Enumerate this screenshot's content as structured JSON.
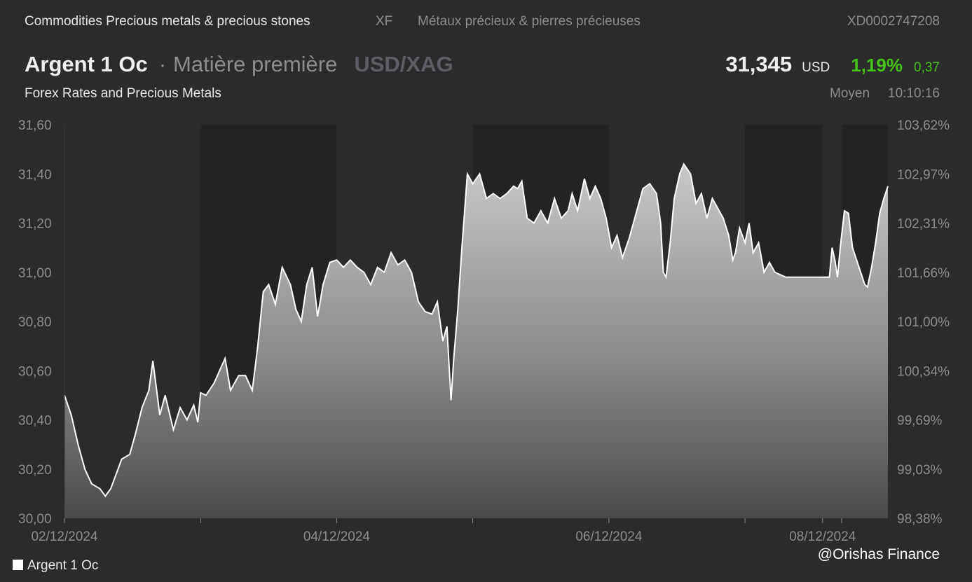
{
  "header": {
    "category": "Commodities Precious metals & precious stones",
    "exchange_code": "XF",
    "category_fr": "Métaux précieux & pierres précieuses",
    "isin": "XD0002747208",
    "instrument_name": "Argent 1 Oc",
    "separator": "·",
    "instrument_type": "Matière première",
    "pair": "USD/XAG",
    "source": "Forex Rates and Precious Metals",
    "price": "31,345",
    "currency": "USD",
    "change_pct": "1,19%",
    "change_abs": "0,37",
    "price_mode": "Moyen",
    "time": "10:10:16"
  },
  "colors": {
    "background": "#2b2b2b",
    "shade": "#232323",
    "line": "#ffffff",
    "positive": "#46c21a",
    "muted": "#8d8d8d"
  },
  "legend": {
    "label": "Argent 1 Oc"
  },
  "watermark": "@Orishas Finance",
  "chart_data": {
    "type": "area",
    "series": [
      {
        "name": "Argent 1 Oc"
      }
    ],
    "x_unit": "days from 02/12/2024",
    "xlim": [
      0,
      6.05
    ],
    "ylim": [
      30.0,
      31.6
    ],
    "y_ticks": [
      "31,60",
      "31,40",
      "31,20",
      "31,00",
      "30,80",
      "30,60",
      "30,40",
      "30,20",
      "30,00"
    ],
    "y_tick_values": [
      31.6,
      31.4,
      31.2,
      31.0,
      30.8,
      30.6,
      30.4,
      30.2,
      30.0
    ],
    "y2_ticks": [
      "103,62%",
      "102,97%",
      "102,31%",
      "101,66%",
      "101,00%",
      "100,34%",
      "99,69%",
      "99,03%",
      "98,38%"
    ],
    "x_ticks": [
      {
        "x": 0,
        "label": "02/12/2024"
      },
      {
        "x": 1,
        "label": ""
      },
      {
        "x": 2,
        "label": "04/12/2024"
      },
      {
        "x": 3,
        "label": ""
      },
      {
        "x": 4,
        "label": "06/12/2024"
      },
      {
        "x": 5,
        "label": ""
      },
      {
        "x": 5.57,
        "label": "08/12/2024"
      },
      {
        "x": 5.71,
        "label": ""
      }
    ],
    "shaded_bands": [
      [
        1.0,
        2.0
      ],
      [
        3.0,
        4.0
      ],
      [
        5.0,
        5.57
      ],
      [
        5.71,
        6.05
      ]
    ],
    "points": [
      [
        0.0,
        30.5
      ],
      [
        0.05,
        30.42
      ],
      [
        0.1,
        30.3
      ],
      [
        0.15,
        30.2
      ],
      [
        0.2,
        30.14
      ],
      [
        0.26,
        30.12
      ],
      [
        0.3,
        30.09
      ],
      [
        0.34,
        30.12
      ],
      [
        0.38,
        30.18
      ],
      [
        0.42,
        30.24
      ],
      [
        0.48,
        30.26
      ],
      [
        0.52,
        30.34
      ],
      [
        0.57,
        30.45
      ],
      [
        0.62,
        30.52
      ],
      [
        0.65,
        30.64
      ],
      [
        0.7,
        30.42
      ],
      [
        0.74,
        30.5
      ],
      [
        0.8,
        30.36
      ],
      [
        0.85,
        30.45
      ],
      [
        0.9,
        30.4
      ],
      [
        0.95,
        30.46
      ],
      [
        0.98,
        30.39
      ],
      [
        1.0,
        30.51
      ],
      [
        1.04,
        30.5
      ],
      [
        1.1,
        30.55
      ],
      [
        1.14,
        30.6
      ],
      [
        1.18,
        30.65
      ],
      [
        1.22,
        30.52
      ],
      [
        1.28,
        30.58
      ],
      [
        1.33,
        30.58
      ],
      [
        1.38,
        30.52
      ],
      [
        1.42,
        30.7
      ],
      [
        1.46,
        30.92
      ],
      [
        1.5,
        30.95
      ],
      [
        1.55,
        30.87
      ],
      [
        1.6,
        31.02
      ],
      [
        1.66,
        30.95
      ],
      [
        1.7,
        30.85
      ],
      [
        1.74,
        30.8
      ],
      [
        1.78,
        30.95
      ],
      [
        1.82,
        31.02
      ],
      [
        1.86,
        30.82
      ],
      [
        1.9,
        30.95
      ],
      [
        1.95,
        31.04
      ],
      [
        2.0,
        31.05
      ],
      [
        2.05,
        31.02
      ],
      [
        2.1,
        31.05
      ],
      [
        2.15,
        31.02
      ],
      [
        2.2,
        31.0
      ],
      [
        2.25,
        30.95
      ],
      [
        2.3,
        31.02
      ],
      [
        2.35,
        31.0
      ],
      [
        2.4,
        31.08
      ],
      [
        2.45,
        31.03
      ],
      [
        2.5,
        31.05
      ],
      [
        2.55,
        31.0
      ],
      [
        2.6,
        30.88
      ],
      [
        2.65,
        30.84
      ],
      [
        2.7,
        30.83
      ],
      [
        2.74,
        30.88
      ],
      [
        2.78,
        30.72
      ],
      [
        2.81,
        30.78
      ],
      [
        2.84,
        30.48
      ],
      [
        2.86,
        30.65
      ],
      [
        2.89,
        30.85
      ],
      [
        2.92,
        31.1
      ],
      [
        2.94,
        31.25
      ],
      [
        2.96,
        31.4
      ],
      [
        2.98,
        31.38
      ],
      [
        3.0,
        31.36
      ],
      [
        3.05,
        31.4
      ],
      [
        3.1,
        31.3
      ],
      [
        3.15,
        31.32
      ],
      [
        3.2,
        31.3
      ],
      [
        3.25,
        31.32
      ],
      [
        3.3,
        31.35
      ],
      [
        3.33,
        31.34
      ],
      [
        3.36,
        31.37
      ],
      [
        3.4,
        31.22
      ],
      [
        3.45,
        31.2
      ],
      [
        3.5,
        31.25
      ],
      [
        3.55,
        31.2
      ],
      [
        3.6,
        31.3
      ],
      [
        3.65,
        31.22
      ],
      [
        3.7,
        31.25
      ],
      [
        3.73,
        31.32
      ],
      [
        3.77,
        31.25
      ],
      [
        3.82,
        31.38
      ],
      [
        3.86,
        31.3
      ],
      [
        3.9,
        31.35
      ],
      [
        3.94,
        31.3
      ],
      [
        3.98,
        31.22
      ],
      [
        4.02,
        31.1
      ],
      [
        4.06,
        31.15
      ],
      [
        4.1,
        31.06
      ],
      [
        4.15,
        31.14
      ],
      [
        4.2,
        31.24
      ],
      [
        4.25,
        31.34
      ],
      [
        4.3,
        31.36
      ],
      [
        4.35,
        31.32
      ],
      [
        4.38,
        31.2
      ],
      [
        4.4,
        31.0
      ],
      [
        4.42,
        30.98
      ],
      [
        4.45,
        31.12
      ],
      [
        4.48,
        31.3
      ],
      [
        4.52,
        31.4
      ],
      [
        4.55,
        31.44
      ],
      [
        4.6,
        31.4
      ],
      [
        4.64,
        31.28
      ],
      [
        4.68,
        31.32
      ],
      [
        4.72,
        31.22
      ],
      [
        4.76,
        31.3
      ],
      [
        4.8,
        31.26
      ],
      [
        4.84,
        31.22
      ],
      [
        4.88,
        31.15
      ],
      [
        4.91,
        31.05
      ],
      [
        4.93,
        31.08
      ],
      [
        4.96,
        31.18
      ],
      [
        5.0,
        31.12
      ],
      [
        5.03,
        31.2
      ],
      [
        5.06,
        31.08
      ],
      [
        5.1,
        31.12
      ],
      [
        5.14,
        31.0
      ],
      [
        5.18,
        31.04
      ],
      [
        5.22,
        31.0
      ],
      [
        5.26,
        30.99
      ],
      [
        5.3,
        30.98
      ],
      [
        5.57,
        30.98
      ],
      [
        5.62,
        30.98
      ],
      [
        5.64,
        31.1
      ],
      [
        5.66,
        31.05
      ],
      [
        5.68,
        30.98
      ],
      [
        5.7,
        31.1
      ],
      [
        5.73,
        31.25
      ],
      [
        5.76,
        31.24
      ],
      [
        5.79,
        31.1
      ],
      [
        5.82,
        31.05
      ],
      [
        5.85,
        31.0
      ],
      [
        5.88,
        30.95
      ],
      [
        5.9,
        30.94
      ],
      [
        5.93,
        31.02
      ],
      [
        5.96,
        31.12
      ],
      [
        5.99,
        31.24
      ],
      [
        6.02,
        31.3
      ],
      [
        6.05,
        31.35
      ]
    ]
  }
}
